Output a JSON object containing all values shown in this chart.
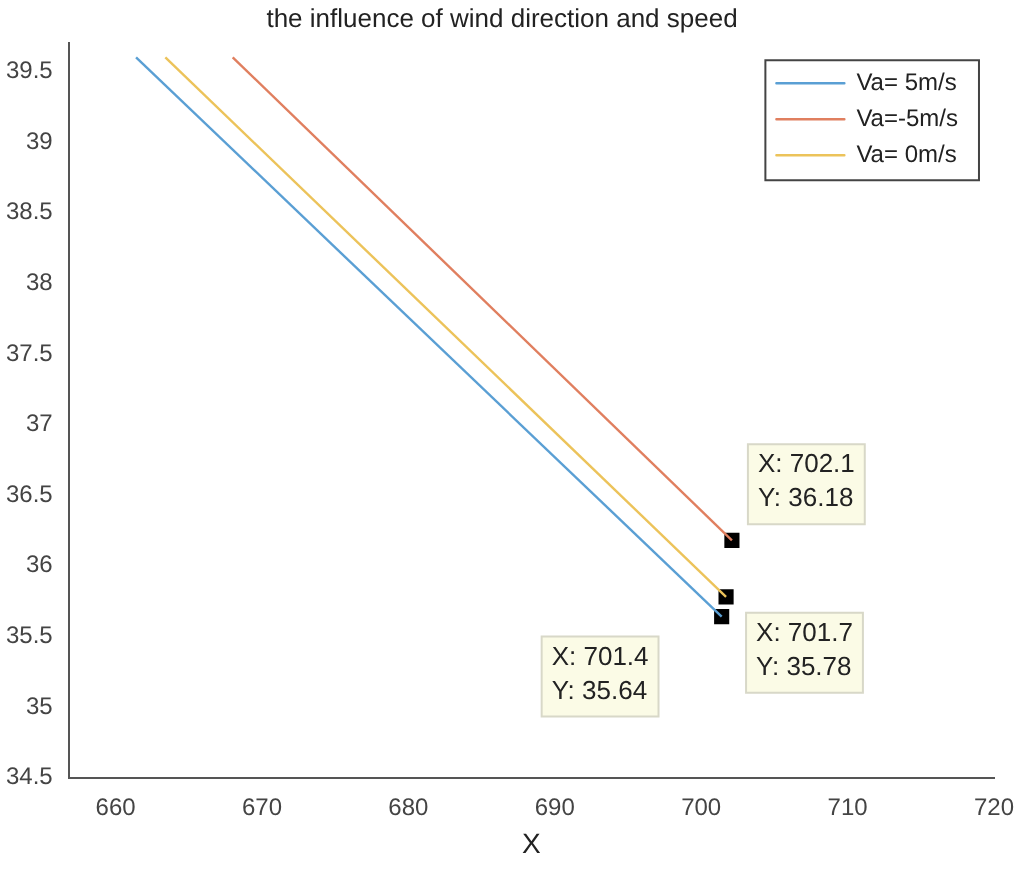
{
  "chart_data": {
    "type": "line",
    "title": "the influence of wind direction and speed",
    "xlabel": "X",
    "series": [
      {
        "name": "Va= 5m/s",
        "color": "#5a9fd4",
        "x": [
          661.4,
          701.4
        ],
        "values": [
          39.6,
          35.64
        ]
      },
      {
        "name": "Va=-5m/s",
        "color": "#e07f5f",
        "x": [
          668,
          702.1
        ],
        "values": [
          39.6,
          36.18
        ]
      },
      {
        "name": "Va= 0m/s",
        "color": "#ecc35a",
        "x": [
          663.4,
          701.7
        ],
        "values": [
          39.6,
          35.78
        ]
      },
      {
        "type": "scatter",
        "marker": "square",
        "color": "#000000",
        "x": [
          702.1,
          701.7,
          701.4
        ],
        "values": [
          36.18,
          35.78,
          35.64
        ]
      }
    ],
    "xlim": [
      656.8,
      720
    ],
    "xticks": [
      660,
      670,
      680,
      690,
      700,
      710,
      720
    ],
    "ylim": [
      34.5,
      39.7
    ],
    "yticks": [
      34.5,
      35,
      35.5,
      36,
      36.5,
      37,
      37.5,
      38,
      38.5,
      39,
      39.5
    ],
    "annotations": [
      {
        "text": "X: 702.1\nY: 36.18",
        "x": 702.1,
        "y": 36.18
      },
      {
        "text": "X: 701.7\nY: 35.78",
        "x": 701.7,
        "y": 35.78
      },
      {
        "text": "X: 701.4\nY: 35.64",
        "x": 701.4,
        "y": 35.64
      }
    ],
    "grid": false,
    "legend": "top right",
    "line_style": "solid"
  }
}
